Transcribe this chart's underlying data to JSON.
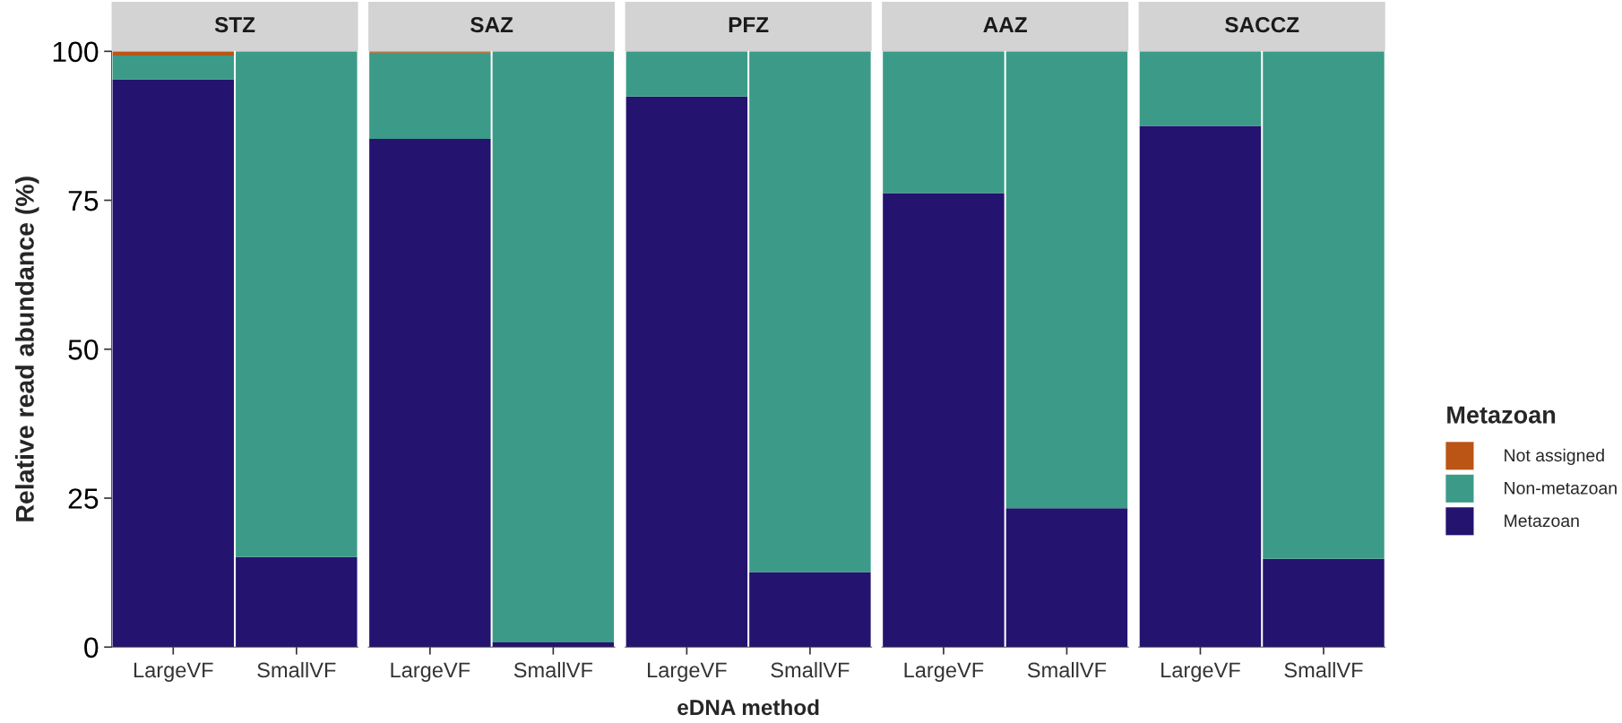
{
  "chart_data": [
    {
      "type": "bar",
      "title": "STZ",
      "categories": [
        "LargeVF",
        "SmallVF"
      ],
      "stacked": true,
      "ylabel": "Relative read abundance (%)",
      "ylim": [
        0,
        100
      ],
      "yticks": [
        0,
        25,
        50,
        75,
        100
      ],
      "legend": "right",
      "legend_title": "Metazoan",
      "series": [
        {
          "name": "Metazoan",
          "color": "#24136f",
          "values": [
            95.3,
            15.1
          ]
        },
        {
          "name": "Non-metazoan",
          "color": "#3b9b88",
          "values": [
            4.0,
            84.9
          ]
        },
        {
          "name": "Not assigned",
          "color": "#bb5515",
          "values": [
            0.7,
            null
          ]
        }
      ]
    },
    {
      "type": "bar",
      "title": "SAZ",
      "categories": [
        "LargeVF",
        "SmallVF"
      ],
      "stacked": true,
      "ylim": [
        0,
        100
      ],
      "tick_labels": "x",
      "series": [
        {
          "color": "#24136f",
          "values": [
            85.3,
            0.8
          ]
        },
        {
          "color": "#3b9b88",
          "values": [
            14.5,
            99.2
          ]
        },
        {
          "color": "#bb5515",
          "values": [
            0.2,
            null
          ]
        }
      ]
    },
    {
      "type": "bar",
      "title": "PFZ",
      "categories": [
        "LargeVF",
        "SmallVF"
      ],
      "stacked": true,
      "xlabel": "eDNA method",
      "ylim": [
        0,
        100
      ],
      "tick_labels": "x",
      "series": [
        {
          "color": "#24136f",
          "values": [
            92.4,
            12.6
          ]
        },
        {
          "color": "#3b9b88",
          "values": [
            7.6,
            87.4
          ]
        }
      ]
    },
    {
      "type": "bar",
      "title": "AAZ",
      "categories": [
        "LargeVF",
        "SmallVF"
      ],
      "stacked": true,
      "ylim": [
        0,
        100
      ],
      "tick_labels": "x",
      "series": [
        {
          "color": "#24136f",
          "values": [
            76.2,
            23.3
          ]
        },
        {
          "color": "#3b9b88",
          "values": [
            23.8,
            76.7
          ]
        }
      ]
    },
    {
      "type": "bar",
      "title": "SACCZ",
      "categories": [
        "LargeVF",
        "SmallVF"
      ],
      "stacked": true,
      "ylim": [
        0,
        100
      ],
      "tick_labels": "x",
      "series": [
        {
          "color": "#24136f",
          "values": [
            87.5,
            14.8
          ]
        },
        {
          "color": "#3b9b88",
          "values": [
            12.5,
            85.2
          ]
        }
      ]
    }
  ]
}
